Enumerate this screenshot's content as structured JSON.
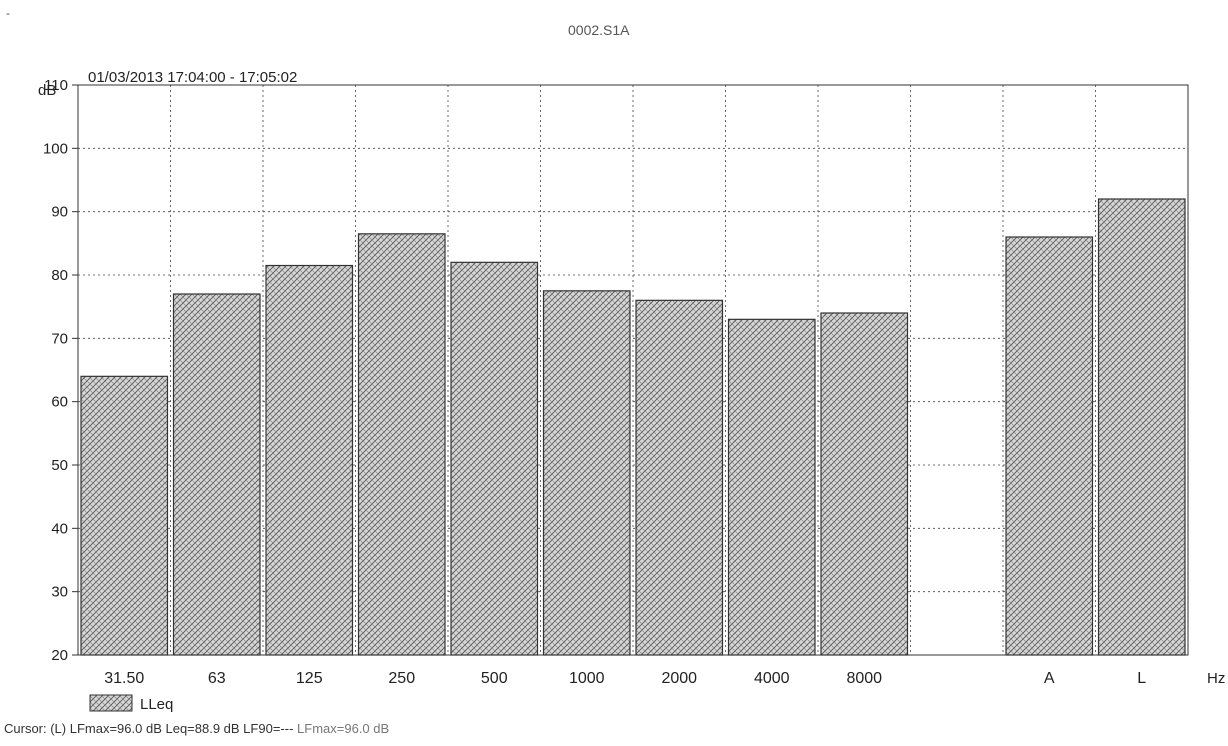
{
  "window": {
    "corner_label": "-",
    "file_title": "0002.S1A"
  },
  "chart_data": {
    "type": "bar",
    "title": "01/03/2013 17:04:00 - 17:05:02",
    "ylabel": "dB",
    "xlabel": "Hz",
    "ylim": [
      20,
      110
    ],
    "yticks": [
      20,
      30,
      40,
      50,
      60,
      70,
      80,
      90,
      100,
      110
    ],
    "grid": true,
    "legend_position": "bottom-left",
    "categories": [
      "31.50",
      "63",
      "125",
      "250",
      "500",
      "1000",
      "2000",
      "4000",
      "8000",
      "",
      "A",
      "L"
    ],
    "series": [
      {
        "name": "LLeq",
        "values": [
          64,
          77,
          81.5,
          86.5,
          82,
          77.5,
          76,
          73,
          74,
          null,
          86,
          92
        ]
      }
    ],
    "colors": {
      "bar_fill": "#cfcfcf",
      "bar_hatch": "#555555",
      "bar_stroke": "#333333",
      "grid": "#444444",
      "axis": "#333333"
    }
  },
  "status": {
    "cursor_text": "Cursor: (L) LFmax=96.0 dB Leq=88.9 dB LF90=---",
    "cursor_text_muted": "LFmax=96.0 dB"
  }
}
